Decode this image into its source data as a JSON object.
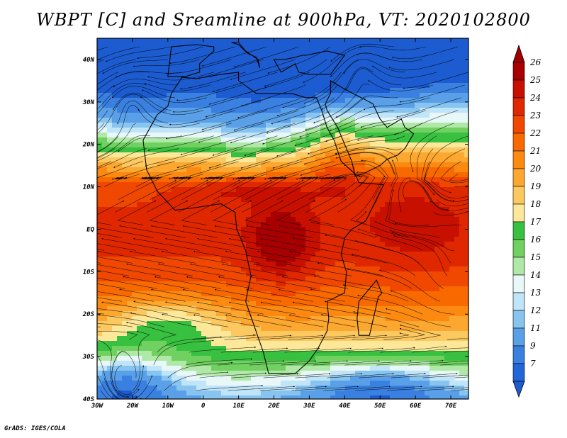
{
  "map": {
    "title": "WBPT [C] and Sreamline at 900hPa, VT: 2020102800",
    "quantity": "WBPT",
    "unit": "C",
    "level": "900hPa",
    "valid_time": "2020102800",
    "projection": "lat-lon",
    "lon_range": [
      -30,
      75
    ],
    "lat_range": [
      -40,
      45
    ],
    "lon_ticks": [
      "30W",
      "20W",
      "10W",
      "0",
      "10E",
      "20E",
      "30E",
      "40E",
      "50E",
      "60E",
      "70E"
    ],
    "lat_ticks": [
      "40N",
      "30N",
      "20N",
      "10N",
      "EQ",
      "10S",
      "20S",
      "30S",
      "40S"
    ]
  },
  "colorbar": {
    "labels": [
      "26",
      "25",
      "24",
      "23",
      "22",
      "21",
      "20",
      "19",
      "18",
      "17",
      "16",
      "15",
      "14",
      "13",
      "12",
      "11",
      "9",
      "7"
    ],
    "colors": [
      "#a80000",
      "#c81000",
      "#e02800",
      "#f04800",
      "#f86a00",
      "#fc8a10",
      "#fca830",
      "#fcc860",
      "#fce898",
      "#38c040",
      "#70d060",
      "#b0e8a8",
      "#e8f8f8",
      "#c0e4f8",
      "#88c4f0",
      "#5aa0e8",
      "#3a80e0",
      "#2266d8"
    ],
    "min_arrow_color": "#1c5cd0",
    "max_arrow_color": "#a00000"
  },
  "footer": "GrADS: IGES/COLA"
}
